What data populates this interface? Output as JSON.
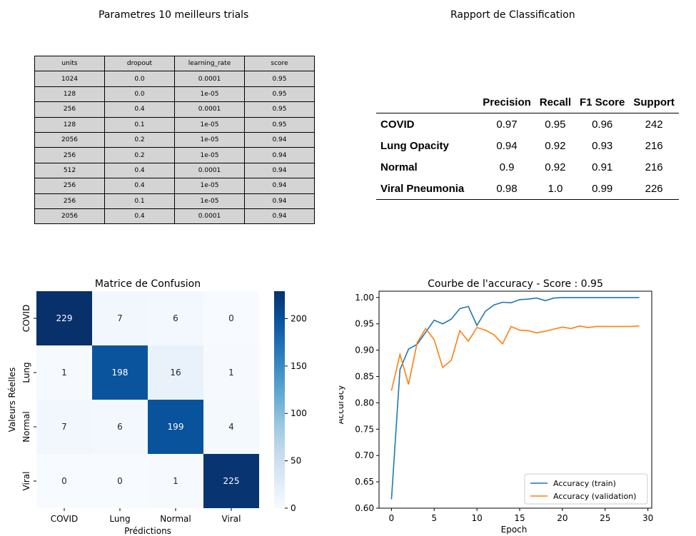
{
  "trials": {
    "title": "Parametres 10 meilleurs trials",
    "columns": [
      "units",
      "dropout",
      "learning_rate",
      "score"
    ],
    "rows": [
      [
        "1024",
        "0.0",
        "0.0001",
        "0.95"
      ],
      [
        "128",
        "0.0",
        "1e-05",
        "0.95"
      ],
      [
        "256",
        "0.4",
        "0.0001",
        "0.95"
      ],
      [
        "128",
        "0.1",
        "1e-05",
        "0.95"
      ],
      [
        "2056",
        "0.2",
        "1e-05",
        "0.94"
      ],
      [
        "256",
        "0.2",
        "1e-05",
        "0.94"
      ],
      [
        "512",
        "0.4",
        "0.0001",
        "0.94"
      ],
      [
        "256",
        "0.4",
        "1e-05",
        "0.94"
      ],
      [
        "256",
        "0.1",
        "1e-05",
        "0.94"
      ],
      [
        "2056",
        "0.4",
        "0.0001",
        "0.94"
      ]
    ]
  },
  "report": {
    "title": "Rapport de Classification",
    "columns": [
      "Precision",
      "Recall",
      "F1 Score",
      "Support"
    ],
    "rows": [
      {
        "label": "COVID",
        "values": [
          "0.97",
          "0.95",
          "0.96",
          "242"
        ]
      },
      {
        "label": "Lung Opacity",
        "values": [
          "0.94",
          "0.92",
          "0.93",
          "216"
        ]
      },
      {
        "label": "Normal",
        "values": [
          "0.9",
          "0.92",
          "0.91",
          "216"
        ]
      },
      {
        "label": "Viral Pneumonia",
        "values": [
          "0.98",
          "1.0",
          "0.99",
          "226"
        ]
      }
    ]
  },
  "chart_data": [
    {
      "type": "heatmap",
      "title": "Matrice de Confusion",
      "xlabel": "Prédictions",
      "ylabel": "Valeurs Réelles",
      "x_categories": [
        "COVID",
        "Lung",
        "Normal",
        "Viral"
      ],
      "y_categories": [
        "COVID",
        "Lung",
        "Normal",
        "Viral"
      ],
      "values": [
        [
          229,
          7,
          6,
          0
        ],
        [
          1,
          198,
          16,
          1
        ],
        [
          7,
          6,
          199,
          4
        ],
        [
          0,
          0,
          1,
          225
        ]
      ],
      "colorbar": {
        "min": 0,
        "max": 229,
        "ticks": [
          0,
          50,
          100,
          150,
          200
        ]
      },
      "colormap": "Blues"
    },
    {
      "type": "line",
      "title": "Courbe de l'accuracy - Score : 0.95",
      "xlabel": "Epoch",
      "ylabel": "Accuracy",
      "xlim": [
        -1.45,
        30.45
      ],
      "ylim": [
        0.6,
        1.012
      ],
      "xticks": [
        0,
        5,
        10,
        15,
        20,
        25,
        30
      ],
      "yticks": [
        "0.60",
        "0.65",
        "0.70",
        "0.75",
        "0.80",
        "0.85",
        "0.90",
        "0.95",
        "1.00"
      ],
      "legend_position": "lower-right",
      "x": [
        0,
        1,
        2,
        3,
        4,
        5,
        6,
        7,
        8,
        9,
        10,
        11,
        12,
        13,
        14,
        15,
        16,
        17,
        18,
        19,
        20,
        21,
        22,
        23,
        24,
        25,
        26,
        27,
        28,
        29
      ],
      "series": [
        {
          "name": "Accuracy (train)",
          "color": "#1f77b4",
          "values": [
            0.617,
            0.863,
            0.902,
            0.911,
            0.934,
            0.957,
            0.95,
            0.959,
            0.979,
            0.983,
            0.947,
            0.974,
            0.986,
            0.991,
            0.99,
            0.996,
            0.997,
            0.999,
            0.994,
            0.999,
            1.0,
            1.0,
            1.0,
            1.0,
            1.0,
            1.0,
            1.0,
            1.0,
            1.0,
            1.0
          ]
        },
        {
          "name": "Accuracy (validation)",
          "color": "#ff7f0e",
          "values": [
            0.823,
            0.892,
            0.835,
            0.914,
            0.941,
            0.92,
            0.867,
            0.881,
            0.937,
            0.917,
            0.943,
            0.938,
            0.929,
            0.912,
            0.945,
            0.938,
            0.937,
            0.933,
            0.936,
            0.94,
            0.944,
            0.941,
            0.946,
            0.943,
            0.945,
            0.945,
            0.945,
            0.945,
            0.945,
            0.946
          ]
        }
      ]
    }
  ]
}
